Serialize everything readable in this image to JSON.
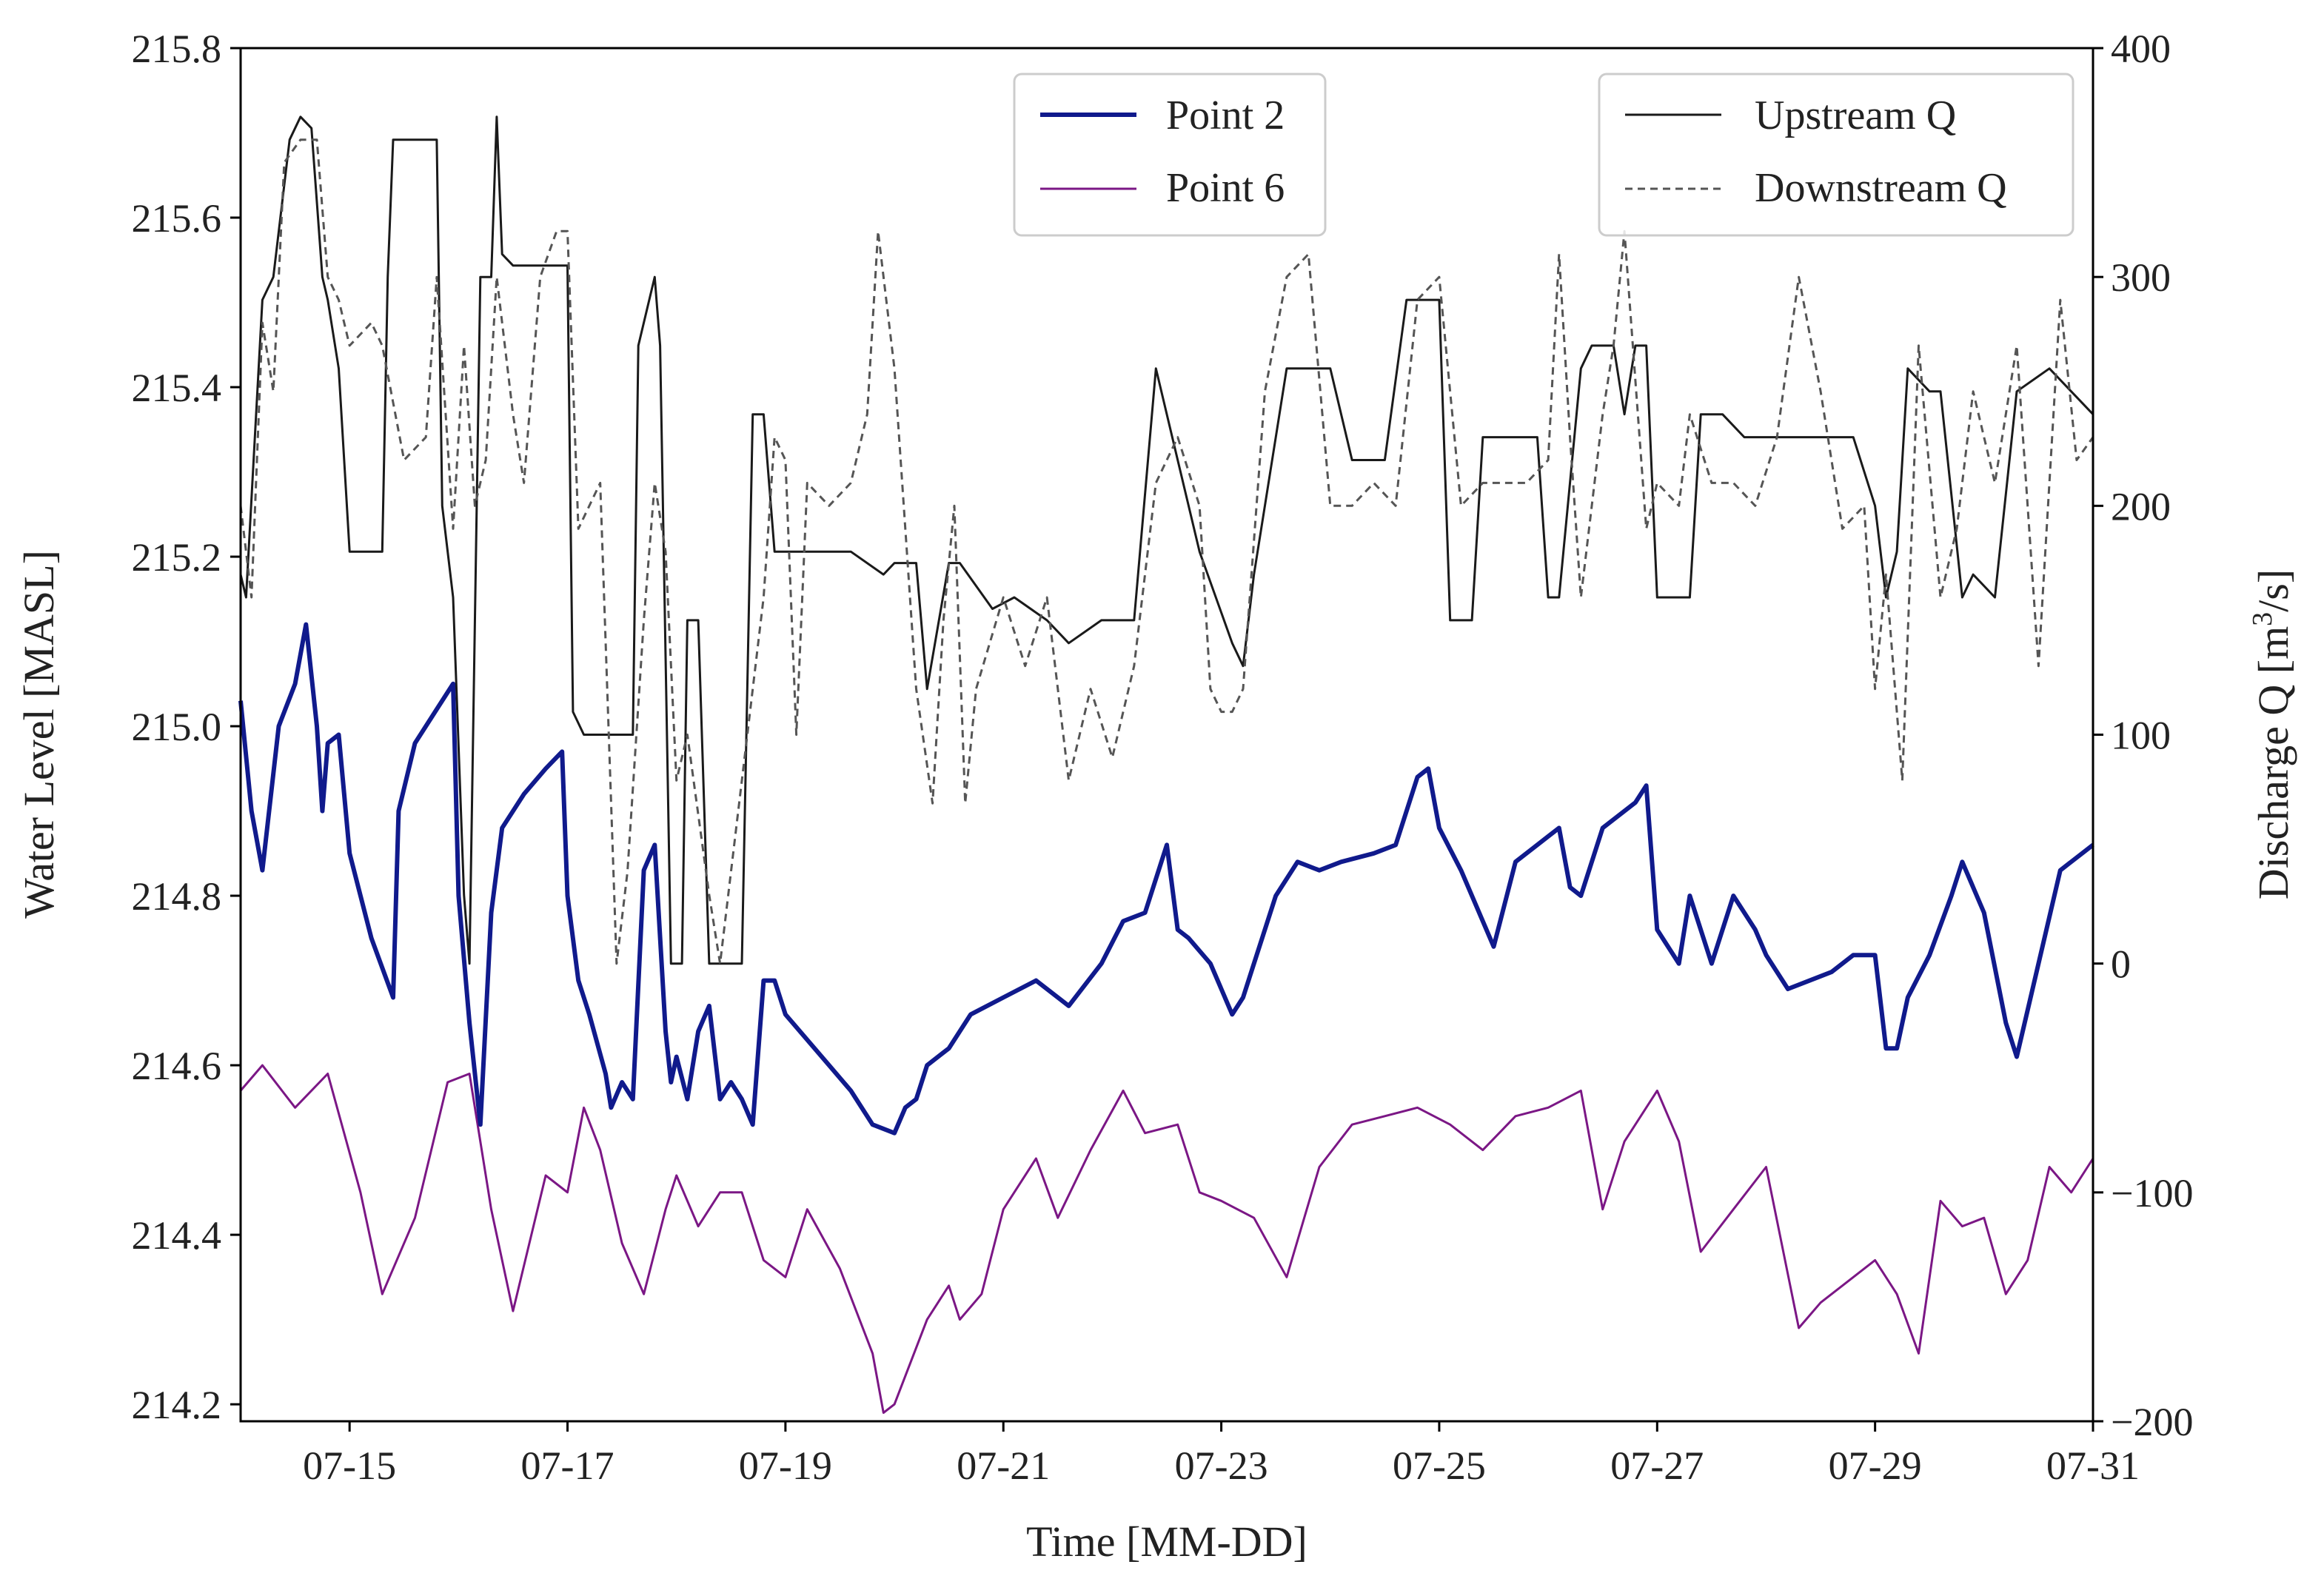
{
  "chart_data": {
    "type": "line",
    "xlabel": "Time [MM-DD]",
    "ylabel_left": "Water Level [MASL]",
    "ylabel_right_prefix": "Discharge Q [m",
    "ylabel_right_sup": "3",
    "ylabel_right_suffix": "/s]",
    "x_ticks": [
      "07-15",
      "07-17",
      "07-19",
      "07-21",
      "07-23",
      "07-25",
      "07-27",
      "07-29",
      "07-31"
    ],
    "x_tick_days": [
      15,
      17,
      19,
      21,
      23,
      25,
      27,
      29,
      31
    ],
    "xlim_days": [
      14.0,
      31.0
    ],
    "y_left_ticks": [
      "214.2",
      "214.4",
      "214.6",
      "214.8",
      "215.0",
      "215.2",
      "215.4",
      "215.6",
      "215.8"
    ],
    "y_left_tick_values": [
      214.2,
      214.4,
      214.6,
      214.8,
      215.0,
      215.2,
      215.4,
      215.6,
      215.8
    ],
    "y_left_lim": [
      214.18,
      215.8
    ],
    "y_right_ticks": [
      "−200",
      "−100",
      "0",
      "100",
      "200",
      "300",
      "400"
    ],
    "y_right_tick_values": [
      -200,
      -100,
      0,
      100,
      200,
      300,
      400
    ],
    "y_right_lim": [
      -200,
      400
    ],
    "legend_left": {
      "position": "top-center",
      "entries": [
        "Point 2",
        "Point 6"
      ]
    },
    "legend_right": {
      "position": "top-right",
      "entries": [
        "Upstream Q",
        "Downstream Q"
      ]
    },
    "series": [
      {
        "name": "Point 2",
        "axis": "left",
        "color": "#101a8c",
        "x": [
          14.0,
          14.1,
          14.2,
          14.35,
          14.5,
          14.6,
          14.7,
          14.75,
          14.8,
          14.9,
          15.0,
          15.2,
          15.4,
          15.45,
          15.6,
          15.8,
          15.95,
          16.0,
          16.1,
          16.2,
          16.3,
          16.4,
          16.6,
          16.8,
          16.95,
          17.0,
          17.1,
          17.2,
          17.35,
          17.4,
          17.5,
          17.6,
          17.7,
          17.8,
          17.9,
          17.95,
          18.0,
          18.1,
          18.2,
          18.3,
          18.4,
          18.5,
          18.6,
          18.7,
          18.8,
          18.9,
          19.0,
          19.2,
          19.4,
          19.6,
          19.8,
          20.0,
          20.1,
          20.2,
          20.3,
          20.5,
          20.7,
          21.0,
          21.3,
          21.6,
          21.9,
          22.1,
          22.3,
          22.5,
          22.6,
          22.7,
          22.9,
          23.1,
          23.2,
          23.3,
          23.5,
          23.7,
          23.9,
          24.1,
          24.4,
          24.6,
          24.8,
          24.9,
          25.0,
          25.2,
          25.5,
          25.7,
          26.0,
          26.1,
          26.2,
          26.3,
          26.5,
          26.8,
          26.9,
          27.0,
          27.2,
          27.3,
          27.5,
          27.7,
          27.9,
          28.0,
          28.2,
          28.4,
          28.6,
          28.8,
          29.0,
          29.1,
          29.2,
          29.3,
          29.5,
          29.7,
          29.8,
          30.0,
          30.2,
          30.3,
          30.5,
          30.7,
          31.0
        ],
        "y": [
          215.03,
          214.9,
          214.83,
          215.0,
          215.05,
          215.12,
          215.0,
          214.9,
          214.98,
          214.99,
          214.85,
          214.75,
          214.68,
          214.9,
          214.98,
          215.02,
          215.05,
          214.8,
          214.65,
          214.53,
          214.78,
          214.88,
          214.92,
          214.95,
          214.97,
          214.8,
          214.7,
          214.66,
          214.59,
          214.55,
          214.58,
          214.56,
          214.83,
          214.86,
          214.64,
          214.58,
          214.61,
          214.56,
          214.64,
          214.67,
          214.56,
          214.58,
          214.56,
          214.53,
          214.7,
          214.7,
          214.66,
          214.63,
          214.6,
          214.57,
          214.53,
          214.52,
          214.55,
          214.56,
          214.6,
          214.62,
          214.66,
          214.68,
          214.7,
          214.67,
          214.72,
          214.77,
          214.78,
          214.86,
          214.76,
          214.75,
          214.72,
          214.66,
          214.68,
          214.72,
          214.8,
          214.84,
          214.83,
          214.84,
          214.85,
          214.86,
          214.94,
          214.95,
          214.88,
          214.83,
          214.74,
          214.84,
          214.87,
          214.88,
          214.81,
          214.8,
          214.88,
          214.91,
          214.93,
          214.76,
          214.72,
          214.8,
          214.72,
          214.8,
          214.76,
          214.73,
          214.69,
          214.7,
          214.71,
          214.73,
          214.73,
          214.62,
          214.62,
          214.68,
          214.73,
          214.8,
          214.84,
          214.78,
          214.65,
          214.61,
          214.72,
          214.83,
          214.86
        ]
      },
      {
        "name": "Point 6",
        "axis": "left",
        "color": "#7b1785",
        "x": [
          14.0,
          14.2,
          14.5,
          14.8,
          15.1,
          15.3,
          15.6,
          15.9,
          16.1,
          16.3,
          16.5,
          16.8,
          17.0,
          17.15,
          17.3,
          17.5,
          17.7,
          17.9,
          18.0,
          18.2,
          18.4,
          18.6,
          18.8,
          19.0,
          19.2,
          19.5,
          19.8,
          19.9,
          20.0,
          20.3,
          20.5,
          20.6,
          20.8,
          21.0,
          21.3,
          21.5,
          21.8,
          22.1,
          22.3,
          22.6,
          22.8,
          23.0,
          23.3,
          23.6,
          23.9,
          24.2,
          24.5,
          24.8,
          25.1,
          25.4,
          25.7,
          26.0,
          26.3,
          26.5,
          26.7,
          27.0,
          27.2,
          27.4,
          27.7,
          28.0,
          28.3,
          28.5,
          28.7,
          29.0,
          29.2,
          29.4,
          29.6,
          29.8,
          30.0,
          30.2,
          30.4,
          30.6,
          30.8,
          31.0
        ],
        "y": [
          214.57,
          214.6,
          214.55,
          214.59,
          214.45,
          214.33,
          214.42,
          214.58,
          214.59,
          214.43,
          214.31,
          214.47,
          214.45,
          214.55,
          214.5,
          214.39,
          214.33,
          214.43,
          214.47,
          214.41,
          214.45,
          214.45,
          214.37,
          214.35,
          214.43,
          214.36,
          214.26,
          214.19,
          214.2,
          214.3,
          214.34,
          214.3,
          214.33,
          214.43,
          214.49,
          214.42,
          214.5,
          214.57,
          214.52,
          214.53,
          214.45,
          214.44,
          214.42,
          214.35,
          214.48,
          214.53,
          214.54,
          214.55,
          214.53,
          214.5,
          214.54,
          214.55,
          214.57,
          214.43,
          214.51,
          214.57,
          214.51,
          214.38,
          214.43,
          214.48,
          214.29,
          214.32,
          214.34,
          214.37,
          214.33,
          214.26,
          214.44,
          214.41,
          214.42,
          214.33,
          214.37,
          214.48,
          214.45,
          214.49
        ]
      },
      {
        "name": "Upstream Q",
        "axis": "right",
        "color": "#1a1a1a",
        "dash": "solid",
        "x": [
          14.0,
          14.05,
          14.2,
          14.3,
          14.45,
          14.55,
          14.65,
          14.75,
          14.8,
          14.9,
          15.0,
          15.3,
          15.35,
          15.4,
          15.8,
          15.85,
          15.95,
          16.05,
          16.1,
          16.2,
          16.3,
          16.35,
          16.4,
          16.5,
          16.7,
          17.0,
          17.05,
          17.15,
          17.3,
          17.6,
          17.65,
          17.8,
          17.85,
          17.95,
          18.05,
          18.1,
          18.2,
          18.3,
          18.4,
          18.5,
          18.6,
          18.7,
          18.8,
          18.9,
          19.0,
          19.2,
          19.3,
          19.6,
          19.9,
          20.0,
          20.2,
          20.3,
          20.5,
          20.6,
          20.9,
          21.1,
          21.4,
          21.6,
          21.9,
          22.2,
          22.4,
          22.6,
          22.8,
          23.1,
          23.2,
          23.3,
          23.5,
          23.6,
          23.8,
          24.0,
          24.2,
          24.5,
          24.7,
          24.8,
          25.0,
          25.1,
          25.3,
          25.4,
          25.7,
          25.9,
          26.0,
          26.1,
          26.3,
          26.4,
          26.6,
          26.7,
          26.8,
          26.9,
          27.0,
          27.1,
          27.3,
          27.4,
          27.6,
          27.8,
          28.0,
          28.3,
          28.6,
          28.8,
          29.0,
          29.1,
          29.2,
          29.3,
          29.5,
          29.6,
          29.8,
          29.9,
          30.1,
          30.3,
          30.6,
          30.8,
          31.0
        ],
        "y": [
          170,
          160,
          290,
          300,
          360,
          370,
          365,
          300,
          290,
          260,
          180,
          180,
          300,
          360,
          360,
          200,
          160,
          30,
          0,
          300,
          300,
          370,
          310,
          305,
          305,
          305,
          110,
          100,
          100,
          100,
          270,
          300,
          270,
          0,
          0,
          150,
          150,
          0,
          0,
          0,
          0,
          240,
          240,
          180,
          180,
          180,
          180,
          180,
          170,
          175,
          175,
          120,
          175,
          175,
          155,
          160,
          150,
          140,
          150,
          150,
          260,
          220,
          180,
          140,
          130,
          170,
          230,
          260,
          260,
          260,
          220,
          220,
          290,
          290,
          290,
          150,
          150,
          230,
          230,
          230,
          160,
          160,
          260,
          270,
          270,
          240,
          270,
          270,
          160,
          160,
          160,
          240,
          240,
          230,
          230,
          230,
          230,
          230,
          200,
          160,
          180,
          260,
          250,
          250,
          160,
          170,
          160,
          250,
          260,
          250,
          240
        ]
      },
      {
        "name": "Downstream Q",
        "axis": "right",
        "color": "#555555",
        "dash": "dashed",
        "x": [
          14.0,
          14.1,
          14.2,
          14.3,
          14.4,
          14.55,
          14.7,
          14.8,
          14.9,
          15.0,
          15.2,
          15.3,
          15.5,
          15.7,
          15.8,
          15.95,
          16.05,
          16.15,
          16.25,
          16.35,
          16.5,
          16.6,
          16.75,
          16.9,
          17.0,
          17.1,
          17.3,
          17.45,
          17.55,
          17.7,
          17.8,
          17.9,
          18.0,
          18.1,
          18.3,
          18.4,
          18.5,
          18.65,
          18.8,
          18.9,
          19.0,
          19.1,
          19.2,
          19.4,
          19.6,
          19.75,
          19.85,
          20.0,
          20.2,
          20.35,
          20.45,
          20.55,
          20.65,
          20.75,
          21.0,
          21.2,
          21.4,
          21.6,
          21.8,
          22.0,
          22.2,
          22.4,
          22.6,
          22.8,
          22.9,
          23.0,
          23.1,
          23.2,
          23.4,
          23.6,
          23.8,
          24.0,
          24.2,
          24.4,
          24.6,
          24.8,
          25.0,
          25.2,
          25.4,
          25.6,
          25.8,
          26.0,
          26.1,
          26.2,
          26.3,
          26.5,
          26.6,
          26.7,
          26.9,
          27.0,
          27.2,
          27.3,
          27.5,
          27.7,
          27.9,
          28.1,
          28.3,
          28.5,
          28.7,
          28.9,
          29.0,
          29.1,
          29.25,
          29.4,
          29.6,
          29.75,
          29.9,
          30.1,
          30.3,
          30.5,
          30.7,
          30.85,
          31.0
        ],
        "y": [
          200,
          160,
          280,
          250,
          350,
          360,
          360,
          300,
          290,
          270,
          280,
          270,
          220,
          230,
          300,
          190,
          270,
          200,
          220,
          300,
          240,
          210,
          300,
          320,
          320,
          190,
          210,
          0,
          40,
          150,
          210,
          180,
          80,
          100,
          30,
          0,
          40,
          100,
          160,
          230,
          220,
          100,
          210,
          200,
          210,
          240,
          320,
          260,
          120,
          70,
          150,
          200,
          70,
          120,
          160,
          130,
          160,
          80,
          120,
          90,
          130,
          210,
          230,
          200,
          120,
          110,
          110,
          120,
          250,
          300,
          310,
          200,
          200,
          210,
          200,
          290,
          300,
          200,
          210,
          210,
          210,
          220,
          310,
          230,
          160,
          240,
          270,
          320,
          190,
          210,
          200,
          240,
          210,
          210,
          200,
          230,
          300,
          250,
          190,
          200,
          120,
          170,
          80,
          270,
          160,
          190,
          250,
          210,
          270,
          130,
          290,
          220,
          230
        ]
      }
    ]
  }
}
